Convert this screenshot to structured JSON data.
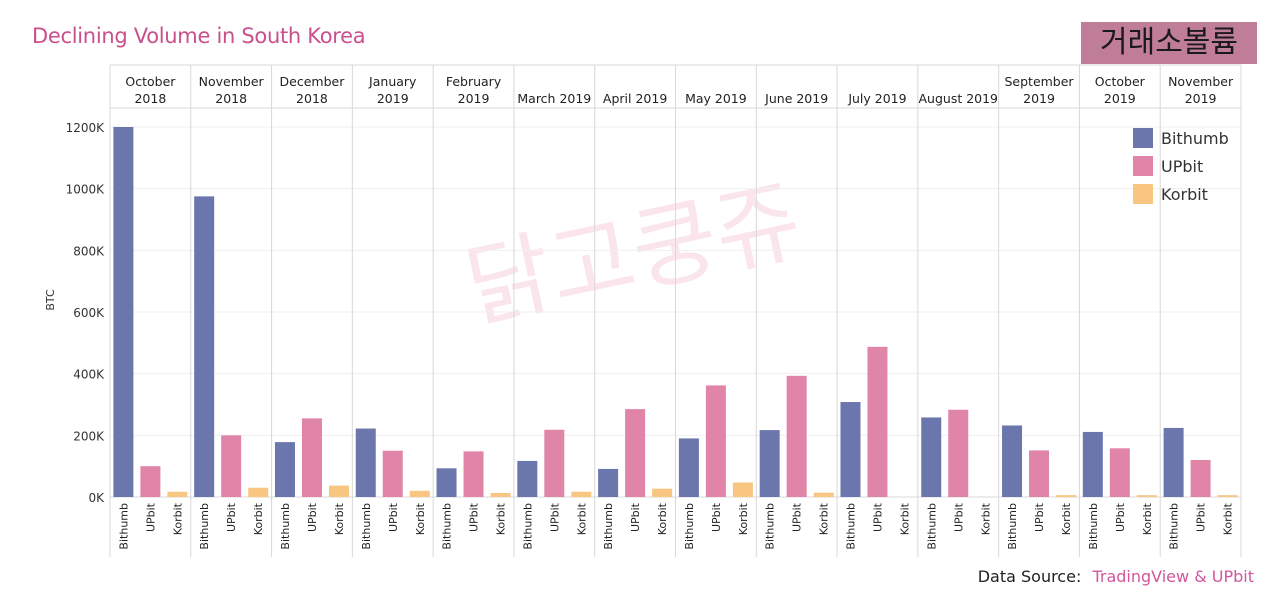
{
  "title": "Declining Volume in South Korea",
  "badge": "거래소볼륨",
  "watermark": "닭고쿵쥬",
  "source": {
    "label": "Data Source:",
    "value": "TradingView & UPbit"
  },
  "colors": {
    "Bithumb": "#6b76ad",
    "UPbit": "#e185a8",
    "Korbit": "#f8c681",
    "title": "#c9508c",
    "badge": "#c07d98"
  },
  "chart_data": {
    "type": "bar",
    "title": "Declining Volume in South Korea",
    "ylabel": "BTC",
    "xlabel": "",
    "ylim": [
      0,
      1200000
    ],
    "yticks": [
      0,
      200000,
      400000,
      600000,
      800000,
      1000000,
      1200000
    ],
    "ytick_labels": [
      "0K",
      "200K",
      "400K",
      "600K",
      "800K",
      "1000K",
      "1200K"
    ],
    "grid": true,
    "legend_position": "top-right",
    "series_names": [
      "Bithumb",
      "UPbit",
      "Korbit"
    ],
    "categories": [
      {
        "label": [
          "October",
          "2018"
        ],
        "values": {
          "Bithumb": 1200000,
          "UPbit": 100000,
          "Korbit": 17000
        }
      },
      {
        "label": [
          "November",
          "2018"
        ],
        "values": {
          "Bithumb": 975000,
          "UPbit": 200000,
          "Korbit": 30000
        }
      },
      {
        "label": [
          "December",
          "2018"
        ],
        "values": {
          "Bithumb": 178000,
          "UPbit": 255000,
          "Korbit": 37000
        }
      },
      {
        "label": [
          "January",
          "2019"
        ],
        "values": {
          "Bithumb": 222000,
          "UPbit": 150000,
          "Korbit": 20000
        }
      },
      {
        "label": [
          "February",
          "2019"
        ],
        "values": {
          "Bithumb": 93000,
          "UPbit": 148000,
          "Korbit": 13000
        }
      },
      {
        "label": [
          "March 2019"
        ],
        "values": {
          "Bithumb": 117000,
          "UPbit": 218000,
          "Korbit": 17000
        }
      },
      {
        "label": [
          "April 2019"
        ],
        "values": {
          "Bithumb": 91000,
          "UPbit": 285000,
          "Korbit": 27000
        }
      },
      {
        "label": [
          "May 2019"
        ],
        "values": {
          "Bithumb": 190000,
          "UPbit": 362000,
          "Korbit": 47000
        }
      },
      {
        "label": [
          "June 2019"
        ],
        "values": {
          "Bithumb": 217000,
          "UPbit": 393000,
          "Korbit": 14000
        }
      },
      {
        "label": [
          "July 2019"
        ],
        "values": {
          "Bithumb": 308000,
          "UPbit": 487000,
          "Korbit": 0
        }
      },
      {
        "label": [
          "August 2019"
        ],
        "values": {
          "Bithumb": 258000,
          "UPbit": 283000,
          "Korbit": 0
        }
      },
      {
        "label": [
          "September",
          "2019"
        ],
        "values": {
          "Bithumb": 232000,
          "UPbit": 151000,
          "Korbit": 6000
        }
      },
      {
        "label": [
          "October",
          "2019"
        ],
        "values": {
          "Bithumb": 211000,
          "UPbit": 158000,
          "Korbit": 6000
        }
      },
      {
        "label": [
          "November",
          "2019"
        ],
        "values": {
          "Bithumb": 224000,
          "UPbit": 120000,
          "Korbit": 6000
        }
      }
    ]
  }
}
